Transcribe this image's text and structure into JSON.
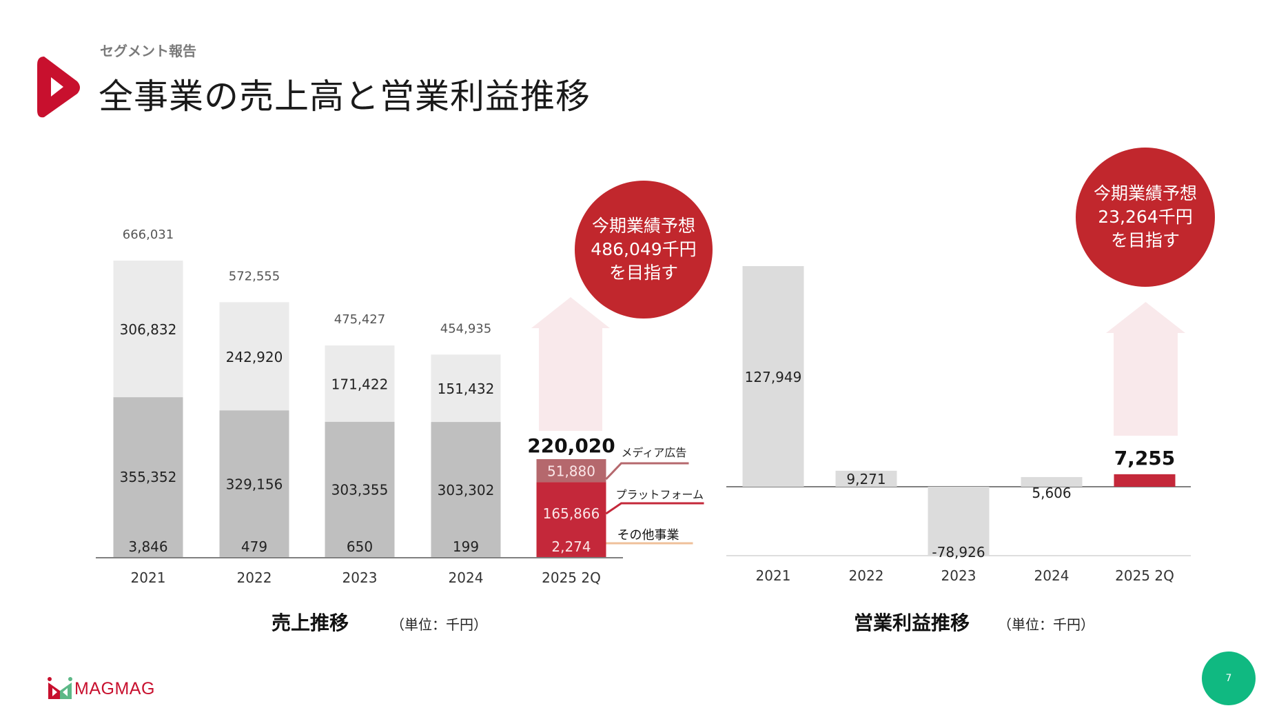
{
  "header": {
    "section": "セグメント報告",
    "title": "全事業の売上高と営業利益推移"
  },
  "footer": {
    "brand": "MAGMAG",
    "page_number": "7"
  },
  "colors": {
    "brand_red": "#c8102e",
    "media_ad": "#b5686d",
    "platform": "#c4283a",
    "other": "#c4283a",
    "other_leader": "#efc09a",
    "gray_light": "#ebebeb",
    "gray_mid": "#bfbfbf",
    "profit_gray": "#dcdcdc",
    "arrow_fill": "#f9e9eb",
    "target_circle": "#c1272d",
    "page_badge": "#10b981"
  },
  "chart_data": [
    {
      "type": "bar",
      "stacked": true,
      "title": "売上推移",
      "unit_label": "（単位：千円）",
      "categories": [
        "2021",
        "2022",
        "2023",
        "2024",
        "2025 2Q"
      ],
      "series": [
        {
          "name": "その他事業",
          "values": [
            3846,
            479,
            650,
            199,
            2274
          ]
        },
        {
          "name": "プラットフォーム",
          "values": [
            355352,
            329156,
            303355,
            303302,
            165866
          ]
        },
        {
          "name": "メディア広告",
          "values": [
            306832,
            242920,
            171422,
            151432,
            51880
          ]
        }
      ],
      "totals": [
        "666,031",
        "572,555",
        "475,427",
        "454,935",
        "220,020"
      ],
      "labels": {
        "other": [
          "3,846",
          "479",
          "650",
          "199",
          "2,274"
        ],
        "platform": [
          "355,352",
          "329,156",
          "303,355",
          "303,302",
          "165,866"
        ],
        "media": [
          "306,832",
          "242,920",
          "171,422",
          "151,432",
          "51,880"
        ]
      },
      "target": {
        "lines": [
          "今期業績予想",
          "486,049千円",
          "を目指す"
        ],
        "value": 486049
      },
      "legend_placement": "right"
    },
    {
      "type": "bar",
      "title": "営業利益推移",
      "unit_label": "（単位：千円）",
      "categories": [
        "2021",
        "2022",
        "2023",
        "2024",
        "2025 2Q"
      ],
      "values": [
        127949,
        9271,
        -78926,
        5606,
        7255
      ],
      "labels": [
        "127,949",
        "9,271",
        "-78,926",
        "5,606",
        "7,255"
      ],
      "target": {
        "lines": [
          "今期業績予想",
          "23,264千円",
          "を目指す"
        ],
        "value": 23264
      }
    }
  ]
}
